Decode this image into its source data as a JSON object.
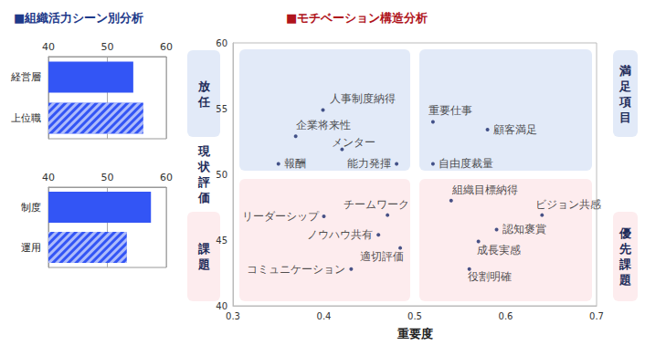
{
  "chart_data": [
    {
      "type": "bar",
      "title": "■組織活力シーン別分析",
      "orientation": "horizontal",
      "categories": [
        "経営層",
        "上位職"
      ],
      "values": [
        54.4,
        56.1
      ],
      "color": "#3355f5",
      "xlim": [
        40,
        60
      ],
      "xticks": [
        40,
        50,
        60
      ],
      "grid": true
    },
    {
      "type": "bar",
      "orientation": "horizontal",
      "categories": [
        "制度",
        "運用"
      ],
      "values": [
        57.4,
        53.3
      ],
      "color": "#3355f5",
      "xlim": [
        40,
        60
      ],
      "xticks": [
        40,
        50,
        60
      ],
      "grid": true
    },
    {
      "type": "scatter",
      "title": "■モチベーション構造分析",
      "x_label": "重要度",
      "xlim": [
        0.3,
        0.7
      ],
      "xticks": [
        0.3,
        0.4,
        0.5,
        0.6,
        0.7
      ],
      "ylim": [
        40,
        60
      ],
      "yticks": [
        40,
        45,
        50,
        55,
        60
      ],
      "grid": false,
      "color": "#1a2a6c",
      "marker": "circle",
      "quadrant_split": {
        "x": 0.5,
        "y": 50
      },
      "annotations": {
        "left": [
          "放任",
          "現状評価",
          "課題"
        ],
        "right": [
          "満足項目",
          "優先課題"
        ]
      },
      "points": [
        {
          "label": "人事制度納得",
          "x": 0.399,
          "y": 54.9
        },
        {
          "label": "企業将来性",
          "x": 0.369,
          "y": 52.9
        },
        {
          "label": "メンター",
          "x": 0.42,
          "y": 51.9
        },
        {
          "label": "報酬",
          "x": 0.35,
          "y": 50.8
        },
        {
          "label": "能力発揮",
          "x": 0.48,
          "y": 50.8
        },
        {
          "label": "重要仕事",
          "x": 0.52,
          "y": 54.0
        },
        {
          "label": "顧客満足",
          "x": 0.58,
          "y": 53.4
        },
        {
          "label": "自由度裁量",
          "x": 0.52,
          "y": 50.8
        },
        {
          "label": "組織目標納得",
          "x": 0.54,
          "y": 48.0
        },
        {
          "label": "ビジョン共感",
          "x": 0.64,
          "y": 46.9
        },
        {
          "label": "認知褒賞",
          "x": 0.59,
          "y": 45.8
        },
        {
          "label": "成長実感",
          "x": 0.57,
          "y": 44.9
        },
        {
          "label": "役割明確",
          "x": 0.56,
          "y": 42.8
        },
        {
          "label": "リーダーシップ",
          "x": 0.4,
          "y": 46.8
        },
        {
          "label": "チームワーク",
          "x": 0.47,
          "y": 46.9
        },
        {
          "label": "ノウハウ共有",
          "x": 0.46,
          "y": 45.4
        },
        {
          "label": "適切評価",
          "x": 0.484,
          "y": 44.4
        },
        {
          "label": "コミュニケーション",
          "x": 0.43,
          "y": 42.8
        }
      ]
    }
  ]
}
